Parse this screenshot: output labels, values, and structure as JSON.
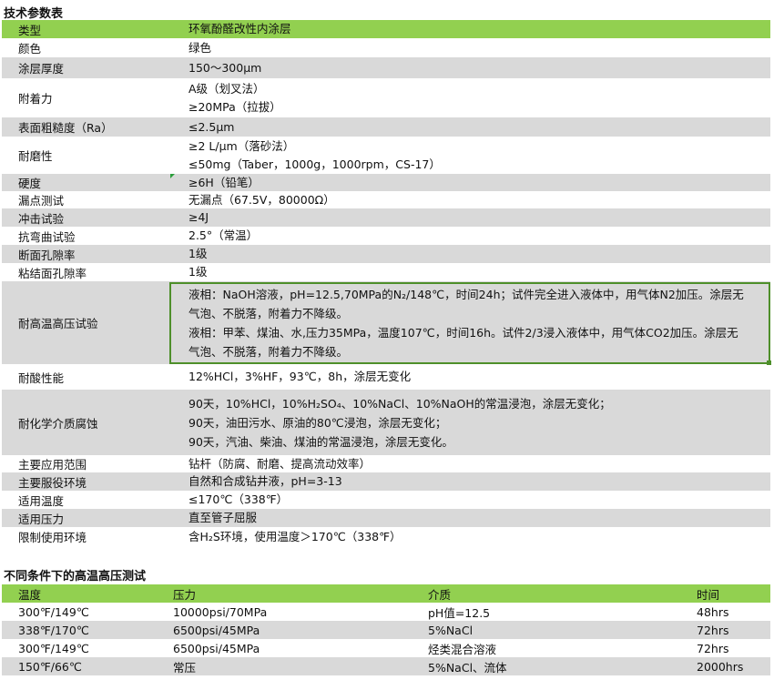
{
  "section1": {
    "title": "技术参数表",
    "rows": [
      {
        "k": "类型",
        "v": [
          "环氧酚醛改性内涂层"
        ]
      },
      {
        "k": "颜色",
        "v": [
          "绿色"
        ]
      },
      {
        "k": "涂层厚度",
        "v": [
          "150～300μm"
        ]
      },
      {
        "k": "附着力",
        "v": [
          "A级（划叉法）",
          "≥20MPa（拉拔）"
        ]
      },
      {
        "k": "表面粗糙度（Ra）",
        "v": [
          "≤2.5μm"
        ]
      },
      {
        "k": "耐磨性",
        "v": [
          "≥2 L/μm（落砂法）",
          "≤50mg（Taber，1000g，1000rpm，CS-17）"
        ]
      },
      {
        "k": "硬度",
        "v": [
          "≥6H（铅笔）"
        ]
      },
      {
        "k": "漏点测试",
        "v": [
          "无漏点（67.5V，80000Ω）"
        ]
      },
      {
        "k": "冲击试验",
        "v": [
          "≥4J"
        ]
      },
      {
        "k": "抗弯曲试验",
        "v": [
          "2.5°（常温）"
        ]
      },
      {
        "k": "断面孔隙率",
        "v": [
          "1级"
        ]
      },
      {
        "k": "粘结面孔隙率",
        "v": [
          "1级"
        ]
      },
      {
        "k": "耐高温高压试验",
        "v": [
          "液相：NaOH溶液，pH=12.5,70MPa的N₂/148℃，时间24h；试件完全进入液体中，用气体N2加压。涂层无",
          "气泡、不脱落，附着力不降级。",
          "液相：甲苯、煤油、水,压力35MPa，温度107℃，时间16h。试件2/3浸入液体中，用气体CO2加压。涂层无",
          "气泡、不脱落，附着力不降级。"
        ]
      },
      {
        "k": "耐酸性能",
        "v": [
          "12%HCl，3%HF，93℃，8h，涂层无变化"
        ]
      },
      {
        "k": "耐化学介质腐蚀",
        "v": [
          "90天，10%HCl，10%H₂SO₄、10%NaCl、10%NaOH的常温浸泡，涂层无变化；",
          "90天，油田污水、原油的80℃浸泡，涂层无变化；",
          "90天，汽油、柴油、煤油的常温浸泡，涂层无变化。"
        ]
      },
      {
        "k": "主要应用范围",
        "v": [
          "钻杆（防腐、耐磨、提高流动效率）"
        ]
      },
      {
        "k": "主要服役环境",
        "v": [
          "自然和合成钻井液，pH=3-13"
        ]
      },
      {
        "k": "适用温度",
        "v": [
          "≤170℃（338℉）"
        ]
      },
      {
        "k": "适用压力",
        "v": [
          "直至管子屈服"
        ]
      },
      {
        "k": "限制使用环境",
        "v": [
          "含H₂S环境，使用温度＞170℃（338℉）"
        ]
      }
    ]
  },
  "section2": {
    "title": "不同条件下的高温高压测试",
    "headers": [
      "温度",
      "压力",
      "介质",
      "时间"
    ],
    "rows": [
      [
        "300℉/149℃",
        "10000psi/70MPa",
        "pH值=12.5",
        "48hrs"
      ],
      [
        "338℉/170℃",
        "6500psi/45MPa",
        "5%NaCl",
        "72hrs"
      ],
      [
        "300℉/149℃",
        "6500psi/45MPa",
        "烃类混合溶液",
        "72hrs"
      ],
      [
        "150℉/66℃",
        "常压",
        "5%NaCl、流体",
        "2000hrs"
      ]
    ]
  },
  "colors": {
    "header_green": "#92d050",
    "stripe_gray": "#d9d9d9",
    "selection_border": "#4e8f2a"
  }
}
